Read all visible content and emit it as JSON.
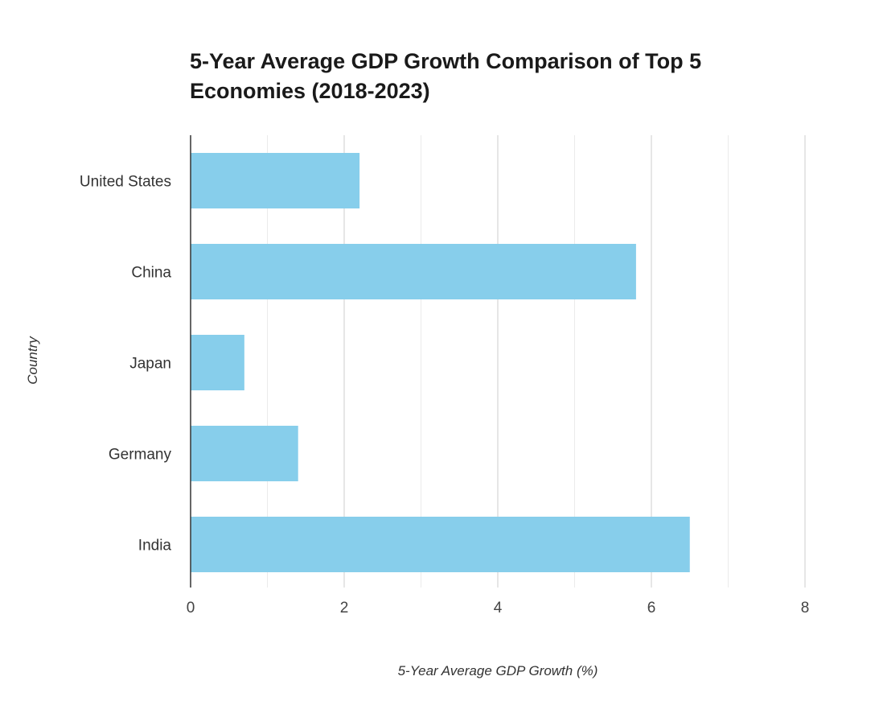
{
  "chart_data": {
    "type": "bar",
    "orientation": "horizontal",
    "title": "5-Year Average GDP Growth Comparison of Top 5 Economies (2018-2023)",
    "xlabel": "5-Year Average GDP Growth (%)",
    "ylabel": "Country",
    "categories": [
      "United States",
      "China",
      "Japan",
      "Germany",
      "India"
    ],
    "values": [
      2.2,
      5.8,
      0.7,
      1.4,
      6.5
    ],
    "xlim": [
      0,
      8
    ],
    "xticks": [
      0,
      2,
      4,
      6,
      8
    ],
    "minor_gridlines": [
      1,
      3,
      5,
      7
    ],
    "grid": true,
    "legend": "none",
    "bar_color": "#87ceeb",
    "major_grid_color": "#cccccc",
    "minor_grid_color": "#ebebeb",
    "axis_color": "#333333"
  }
}
